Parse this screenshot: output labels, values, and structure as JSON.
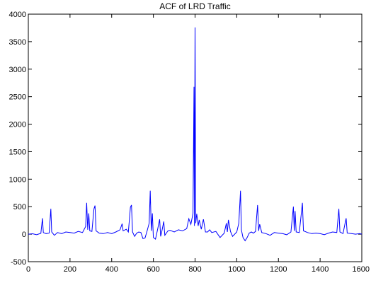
{
  "chart_data": {
    "type": "line",
    "title": "ACF of LRD Traffic",
    "xlabel": "",
    "ylabel": "",
    "xlim": [
      0,
      1600
    ],
    "ylim": [
      -500,
      4000
    ],
    "xticks": [
      0,
      200,
      400,
      600,
      800,
      1000,
      1200,
      1400,
      1600
    ],
    "yticks": [
      -500,
      0,
      500,
      1000,
      1500,
      2000,
      2500,
      3000,
      3500,
      4000
    ],
    "grid": false,
    "line_color": "#0000ff",
    "series": [
      {
        "points": [
          [
            0,
            0
          ],
          [
            20,
            8
          ],
          [
            40,
            -10
          ],
          [
            60,
            15
          ],
          [
            68,
            290
          ],
          [
            72,
            30
          ],
          [
            85,
            10
          ],
          [
            100,
            20
          ],
          [
            108,
            460
          ],
          [
            112,
            40
          ],
          [
            125,
            -20
          ],
          [
            140,
            30
          ],
          [
            160,
            10
          ],
          [
            180,
            40
          ],
          [
            200,
            30
          ],
          [
            220,
            20
          ],
          [
            240,
            50
          ],
          [
            260,
            30
          ],
          [
            275,
            140
          ],
          [
            280,
            570
          ],
          [
            285,
            80
          ],
          [
            290,
            380
          ],
          [
            295,
            60
          ],
          [
            305,
            50
          ],
          [
            315,
            460
          ],
          [
            320,
            520
          ],
          [
            325,
            60
          ],
          [
            340,
            20
          ],
          [
            360,
            10
          ],
          [
            380,
            30
          ],
          [
            400,
            10
          ],
          [
            420,
            40
          ],
          [
            440,
            80
          ],
          [
            450,
            190
          ],
          [
            455,
            60
          ],
          [
            470,
            90
          ],
          [
            480,
            40
          ],
          [
            490,
            490
          ],
          [
            495,
            530
          ],
          [
            500,
            40
          ],
          [
            510,
            -40
          ],
          [
            520,
            20
          ],
          [
            530,
            40
          ],
          [
            540,
            30
          ],
          [
            550,
            -80
          ],
          [
            560,
            -70
          ],
          [
            570,
            60
          ],
          [
            580,
            200
          ],
          [
            585,
            790
          ],
          [
            590,
            60
          ],
          [
            595,
            380
          ],
          [
            600,
            -60
          ],
          [
            610,
            -90
          ],
          [
            620,
            80
          ],
          [
            630,
            270
          ],
          [
            635,
            -40
          ],
          [
            640,
            40
          ],
          [
            650,
            230
          ],
          [
            655,
            -20
          ],
          [
            670,
            60
          ],
          [
            680,
            70
          ],
          [
            700,
            40
          ],
          [
            720,
            80
          ],
          [
            740,
            60
          ],
          [
            760,
            100
          ],
          [
            770,
            280
          ],
          [
            780,
            180
          ],
          [
            790,
            380
          ],
          [
            795,
            2680
          ],
          [
            797,
            150
          ],
          [
            800,
            3760
          ],
          [
            803,
            200
          ],
          [
            808,
            370
          ],
          [
            815,
            150
          ],
          [
            820,
            260
          ],
          [
            830,
            90
          ],
          [
            840,
            270
          ],
          [
            850,
            40
          ],
          [
            860,
            40
          ],
          [
            870,
            80
          ],
          [
            880,
            30
          ],
          [
            900,
            50
          ],
          [
            920,
            -60
          ],
          [
            940,
            20
          ],
          [
            950,
            200
          ],
          [
            955,
            40
          ],
          [
            960,
            260
          ],
          [
            970,
            50
          ],
          [
            980,
            -40
          ],
          [
            1000,
            40
          ],
          [
            1010,
            200
          ],
          [
            1018,
            790
          ],
          [
            1022,
            80
          ],
          [
            1030,
            -60
          ],
          [
            1040,
            -120
          ],
          [
            1050,
            -60
          ],
          [
            1060,
            20
          ],
          [
            1070,
            40
          ],
          [
            1080,
            20
          ],
          [
            1090,
            50
          ],
          [
            1100,
            530
          ],
          [
            1105,
            60
          ],
          [
            1110,
            180
          ],
          [
            1120,
            30
          ],
          [
            1140,
            10
          ],
          [
            1160,
            -20
          ],
          [
            1180,
            30
          ],
          [
            1200,
            20
          ],
          [
            1220,
            10
          ],
          [
            1240,
            -10
          ],
          [
            1260,
            40
          ],
          [
            1272,
            500
          ],
          [
            1276,
            60
          ],
          [
            1280,
            420
          ],
          [
            1285,
            40
          ],
          [
            1300,
            30
          ],
          [
            1310,
            380
          ],
          [
            1315,
            570
          ],
          [
            1320,
            60
          ],
          [
            1340,
            30
          ],
          [
            1360,
            10
          ],
          [
            1380,
            20
          ],
          [
            1400,
            10
          ],
          [
            1420,
            -10
          ],
          [
            1440,
            20
          ],
          [
            1460,
            40
          ],
          [
            1480,
            30
          ],
          [
            1490,
            460
          ],
          [
            1495,
            40
          ],
          [
            1510,
            10
          ],
          [
            1520,
            200
          ],
          [
            1525,
            290
          ],
          [
            1530,
            20
          ],
          [
            1550,
            10
          ],
          [
            1570,
            0
          ],
          [
            1590,
            10
          ],
          [
            1600,
            0
          ]
        ]
      }
    ]
  }
}
